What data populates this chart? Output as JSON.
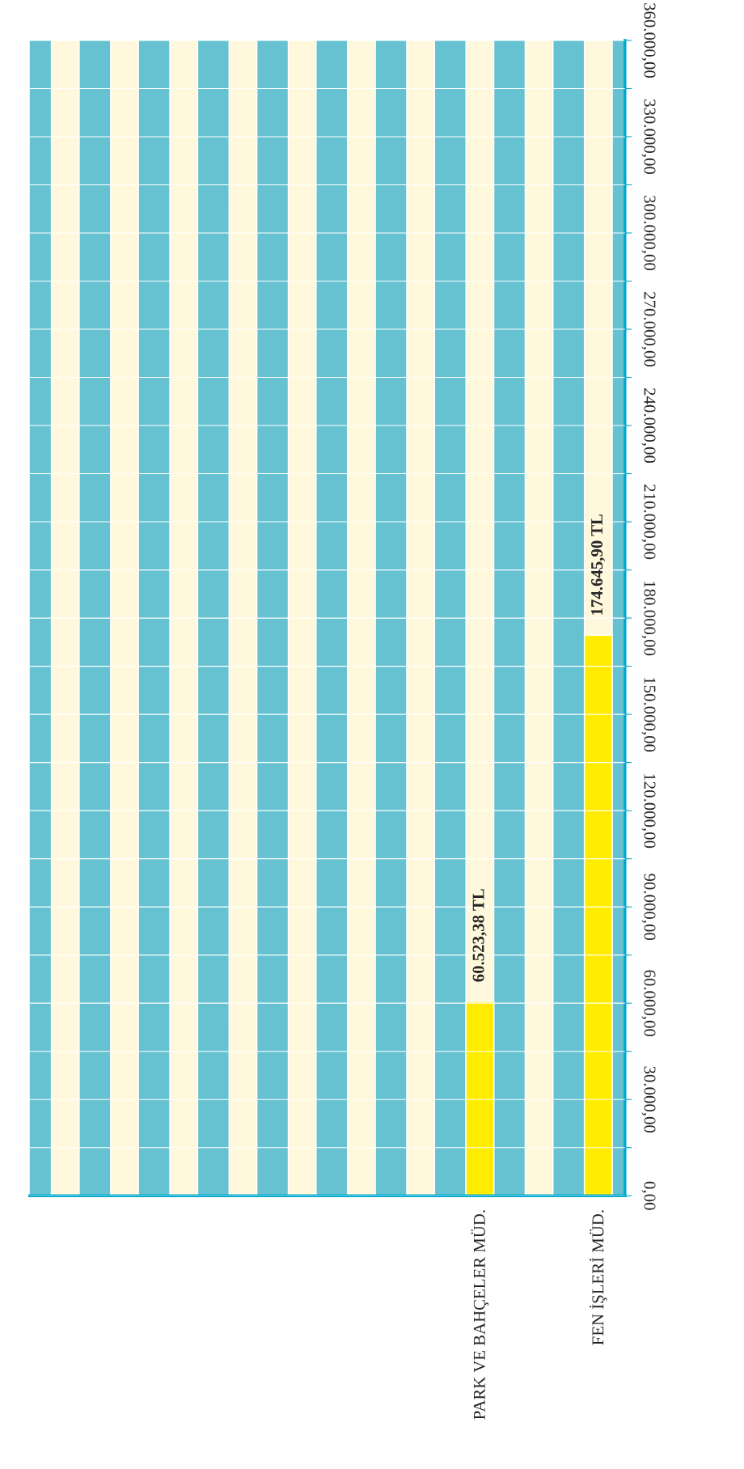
{
  "chart_data": {
    "type": "bar",
    "categories": [
      null,
      null,
      null,
      null,
      null,
      null,
      null,
      "PARK VE BAHÇELER MÜD.",
      null,
      "FEN İŞLERİ MÜD."
    ],
    "series": [
      {
        "color": "#fff8dc",
        "values": [
          360000,
          360000,
          360000,
          360000,
          360000,
          360000,
          360000,
          360000,
          360000,
          360000
        ]
      },
      {
        "color": "#ffec00",
        "values": [
          null,
          null,
          null,
          null,
          null,
          null,
          null,
          60523.38,
          null,
          174645.9
        ],
        "value_labels": [
          null,
          null,
          null,
          null,
          null,
          null,
          null,
          "60.523,38 TL",
          null,
          "174.645,90 TL"
        ]
      }
    ],
    "ylim": [
      0,
      360000
    ],
    "yticks": [
      {
        "value": 0,
        "label": "0,00"
      },
      {
        "value": 15000,
        "label": null
      },
      {
        "value": 30000,
        "label": "30.000,00"
      },
      {
        "value": 45000,
        "label": null
      },
      {
        "value": 60000,
        "label": "60.000,00"
      },
      {
        "value": 75000,
        "label": null
      },
      {
        "value": 90000,
        "label": "90.000,00"
      },
      {
        "value": 105000,
        "label": null
      },
      {
        "value": 120000,
        "label": "120.000,00"
      },
      {
        "value": 135000,
        "label": null
      },
      {
        "value": 150000,
        "label": "150.000,00"
      },
      {
        "value": 165000,
        "label": null
      },
      {
        "value": 180000,
        "label": "180.000,00"
      },
      {
        "value": 195000,
        "label": null
      },
      {
        "value": 210000,
        "label": "210.000,00"
      },
      {
        "value": 225000,
        "label": null
      },
      {
        "value": 240000,
        "label": "240.000,00"
      },
      {
        "value": 255000,
        "label": null
      },
      {
        "value": 270000,
        "label": "270.000,00"
      },
      {
        "value": 285000,
        "label": null
      },
      {
        "value": 300000,
        "label": "300.000,00"
      },
      {
        "value": 315000,
        "label": null
      },
      {
        "value": 330000,
        "label": "330.000,00"
      },
      {
        "value": 345000,
        "label": null
      },
      {
        "value": 360000,
        "label": "360.000,00"
      }
    ],
    "grid": "y"
  }
}
